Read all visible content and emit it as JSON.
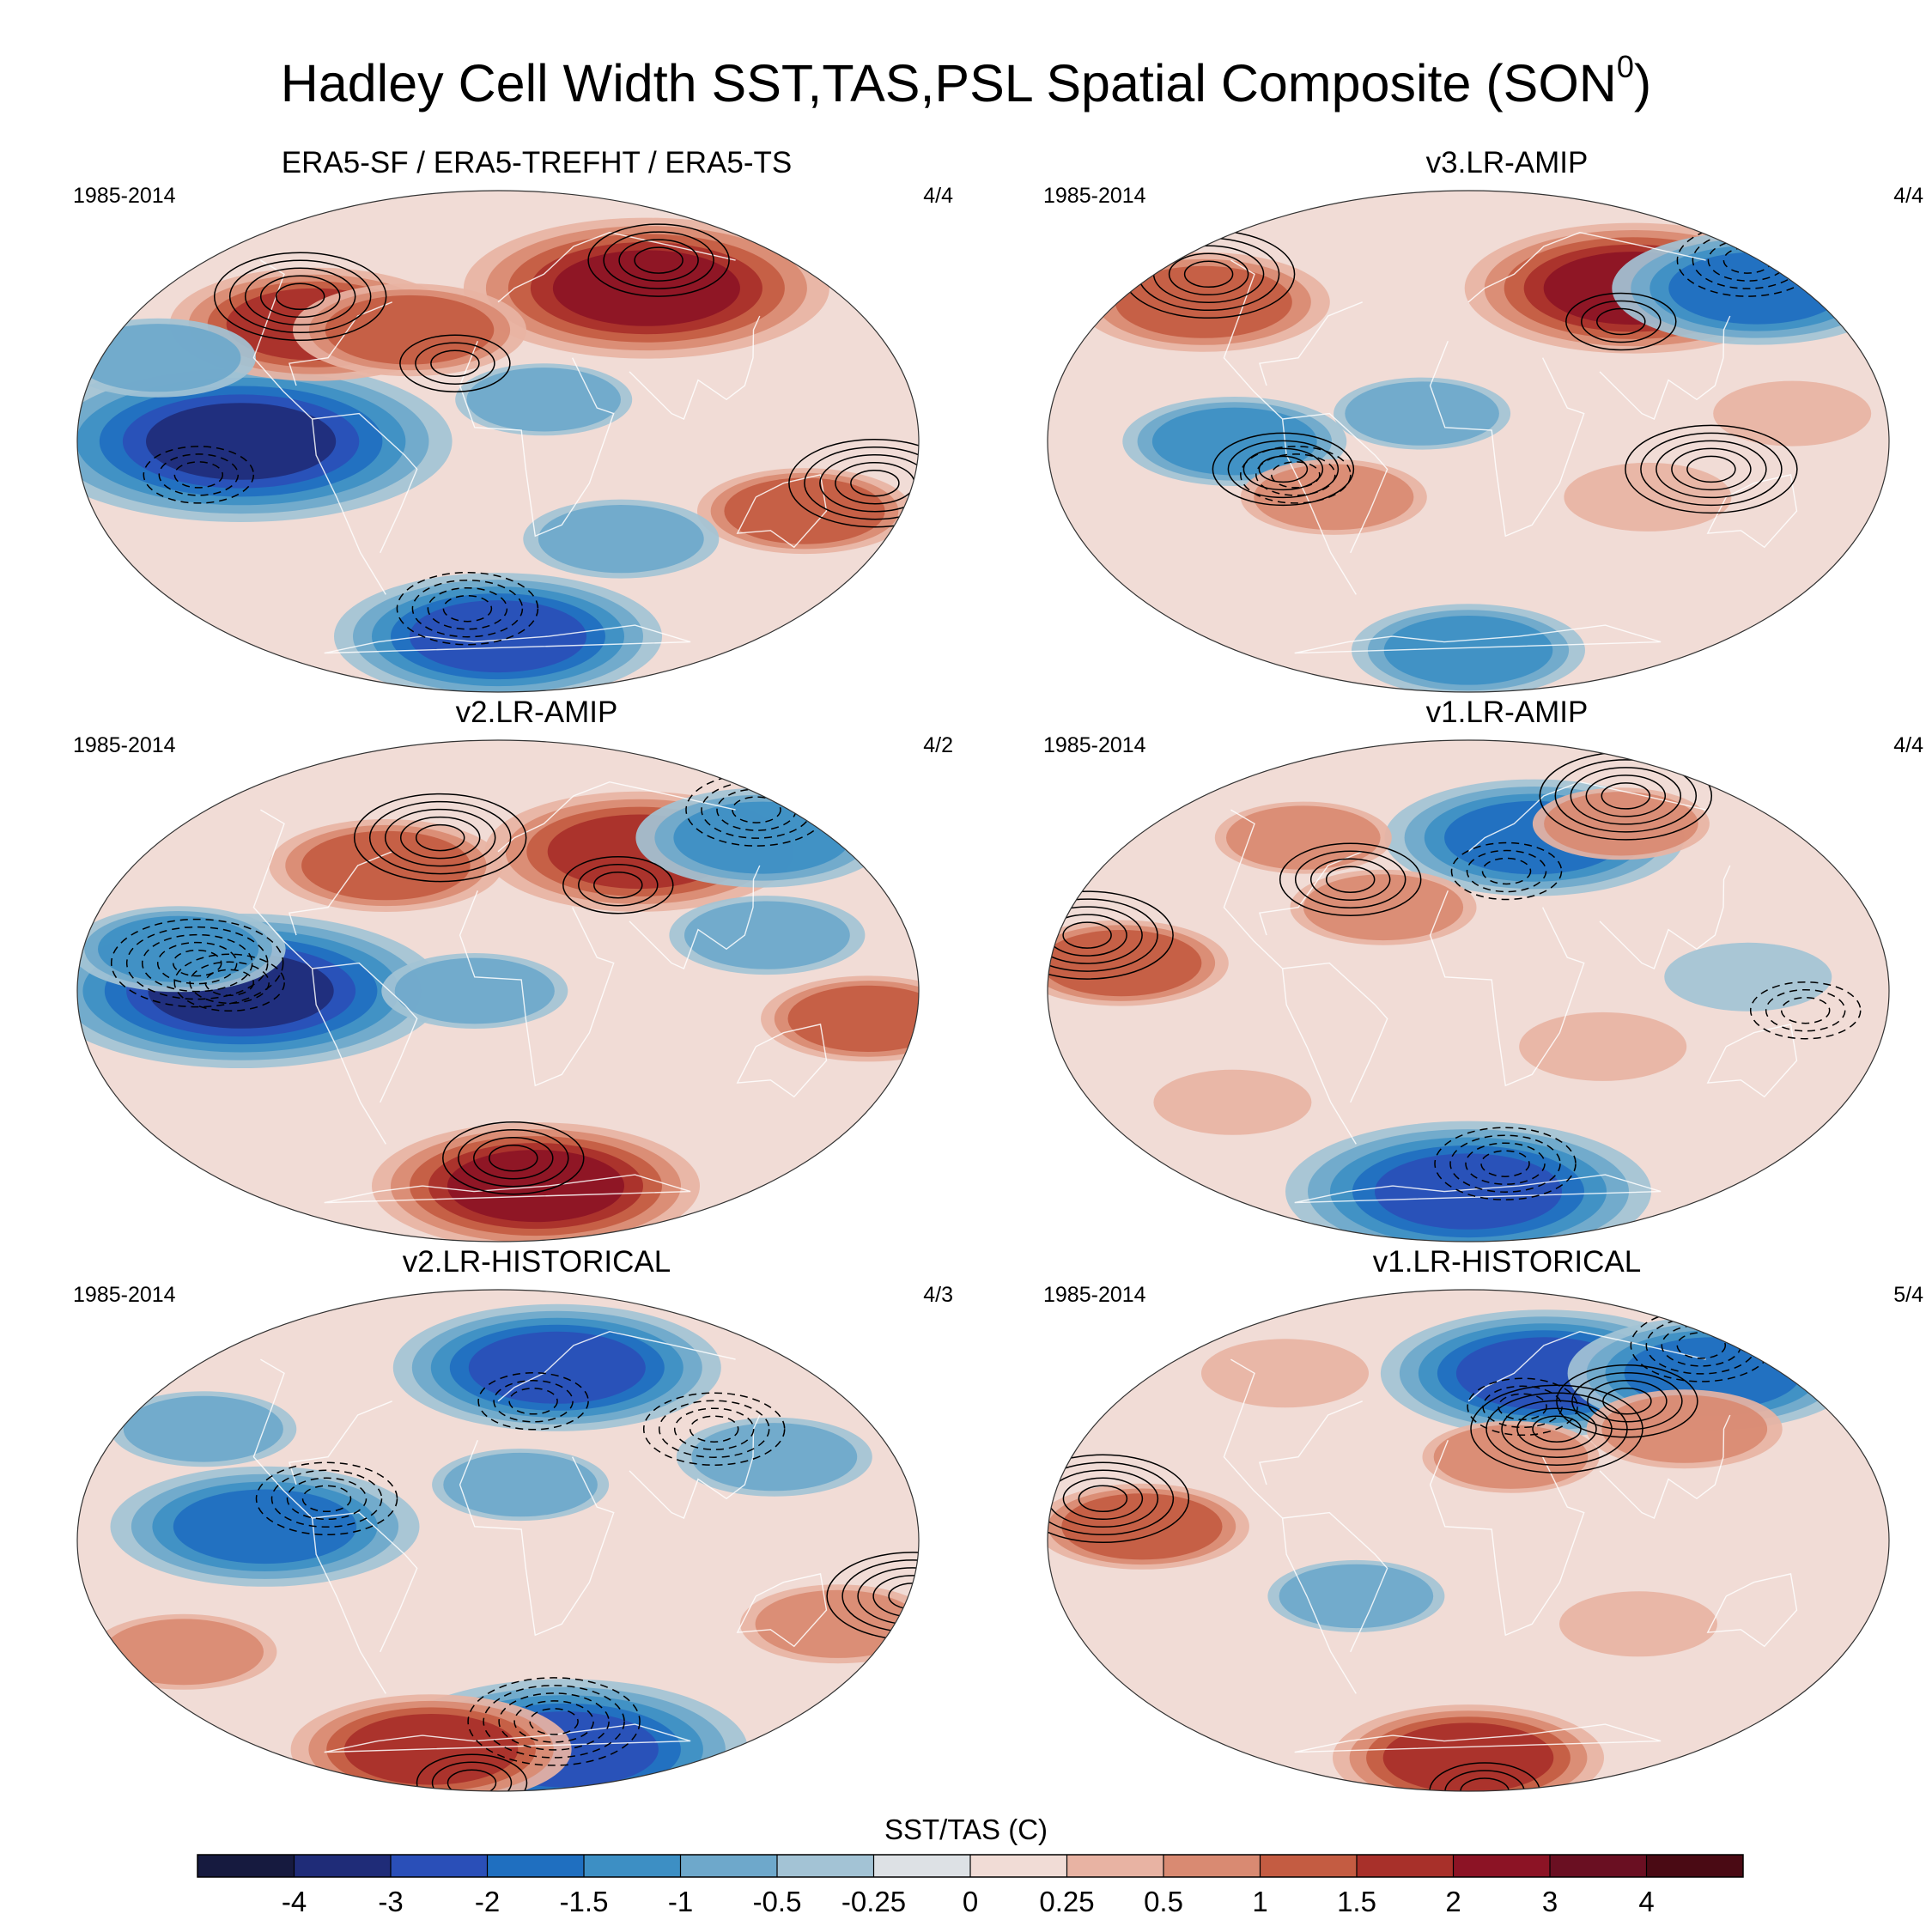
{
  "figure": {
    "title_main": "Hadley Cell Width SST,TAS,PSL Spatial Composite (SON",
    "title_sup": "0",
    "title_close": ")"
  },
  "panels": [
    {
      "title": "ERA5-SF / ERA5-TREFHT / ERA5-TS",
      "period": "1985-2014",
      "count": "4/4"
    },
    {
      "title": "v3.LR-AMIP",
      "period": "1985-2014",
      "count": "4/4"
    },
    {
      "title": "v2.LR-AMIP",
      "period": "1985-2014",
      "count": "4/2"
    },
    {
      "title": "v1.LR-AMIP",
      "period": "1985-2014",
      "count": "4/4"
    },
    {
      "title": "v2.LR-HISTORICAL",
      "period": "1985-2014",
      "count": "4/3"
    },
    {
      "title": "v1.LR-HISTORICAL",
      "period": "1985-2014",
      "count": "5/4"
    }
  ],
  "colorbar": {
    "label": "SST/TAS (C)",
    "ticks": [
      "-4",
      "-3",
      "-2",
      "-1.5",
      "-1",
      "-0.5",
      "-0.25",
      "0",
      "0.25",
      "0.5",
      "1",
      "1.5",
      "2",
      "3",
      "4"
    ],
    "colors": [
      "#161a3f",
      "#1f2c78",
      "#2a4fb8",
      "#1f6fc0",
      "#3d8fc4",
      "#6ea8cb",
      "#a3c3d5",
      "#dde1e5",
      "#f1dcd6",
      "#e8b3a3",
      "#d98a72",
      "#c45c42",
      "#a8302a",
      "#8c1325",
      "#6a0f22",
      "#4a0a14"
    ]
  },
  "anomalies": [
    [
      {
        "lon": -110,
        "lat": 0,
        "v": -3.2
      },
      {
        "lon": 90,
        "lat": 55,
        "v": 2.6
      },
      {
        "lon": -95,
        "lat": 42,
        "v": 1.8
      },
      {
        "lon": -45,
        "lat": 40,
        "v": 1.2
      },
      {
        "lon": 0,
        "lat": -70,
        "v": -2.2
      },
      {
        "lon": 140,
        "lat": -25,
        "v": 1.0
      },
      {
        "lon": 60,
        "lat": -35,
        "v": -0.8
      },
      {
        "lon": 20,
        "lat": 15,
        "v": -0.6
      },
      {
        "lon": -160,
        "lat": 30,
        "v": -0.8
      }
    ],
    [
      {
        "lon": 100,
        "lat": 55,
        "v": 2.3
      },
      {
        "lon": 175,
        "lat": 55,
        "v": -1.8
      },
      {
        "lon": -150,
        "lat": 50,
        "v": 1.4
      },
      {
        "lon": -100,
        "lat": 0,
        "v": -1.1
      },
      {
        "lon": -60,
        "lat": -20,
        "v": 0.7
      },
      {
        "lon": 80,
        "lat": -20,
        "v": 0.5
      },
      {
        "lon": 0,
        "lat": -75,
        "v": -1.2
      },
      {
        "lon": -20,
        "lat": 10,
        "v": -0.6
      },
      {
        "lon": 140,
        "lat": 10,
        "v": 0.4
      }
    ],
    [
      {
        "lon": 80,
        "lat": 50,
        "v": 2.0
      },
      {
        "lon": 160,
        "lat": 55,
        "v": -1.4
      },
      {
        "lon": -110,
        "lat": 0,
        "v": -3.0
      },
      {
        "lon": -140,
        "lat": 15,
        "v": -1.0
      },
      {
        "lon": 30,
        "lat": -70,
        "v": 2.2
      },
      {
        "lon": -60,
        "lat": 45,
        "v": 1.2
      },
      {
        "lon": 160,
        "lat": -10,
        "v": 1.0
      },
      {
        "lon": 120,
        "lat": 20,
        "v": -0.8
      },
      {
        "lon": -10,
        "lat": 0,
        "v": -0.7
      }
    ],
    [
      {
        "lon": 40,
        "lat": 55,
        "v": -1.9
      },
      {
        "lon": 0,
        "lat": -72,
        "v": -2.6
      },
      {
        "lon": -150,
        "lat": 10,
        "v": 1.0
      },
      {
        "lon": 120,
        "lat": 5,
        "v": -0.5
      },
      {
        "lon": -40,
        "lat": 30,
        "v": 0.7
      },
      {
        "lon": 100,
        "lat": 60,
        "v": 0.6
      },
      {
        "lon": -100,
        "lat": 55,
        "v": 0.6
      },
      {
        "lon": 60,
        "lat": -20,
        "v": 0.5
      },
      {
        "lon": -120,
        "lat": -40,
        "v": 0.4
      }
    ],
    [
      {
        "lon": 40,
        "lat": 62,
        "v": -2.2
      },
      {
        "lon": -100,
        "lat": 5,
        "v": -2.0
      },
      {
        "lon": 60,
        "lat": -75,
        "v": -2.6
      },
      {
        "lon": -60,
        "lat": -75,
        "v": 1.7
      },
      {
        "lon": 130,
        "lat": 30,
        "v": -0.8
      },
      {
        "lon": 160,
        "lat": -30,
        "v": 0.8
      },
      {
        "lon": -160,
        "lat": -40,
        "v": 0.7
      },
      {
        "lon": -150,
        "lat": 40,
        "v": -0.7
      },
      {
        "lon": 10,
        "lat": 20,
        "v": -0.6
      }
    ],
    [
      {
        "lon": 50,
        "lat": 60,
        "v": -2.2
      },
      {
        "lon": 160,
        "lat": 60,
        "v": -1.8
      },
      {
        "lon": -140,
        "lat": 5,
        "v": 1.0
      },
      {
        "lon": 0,
        "lat": -78,
        "v": 1.6
      },
      {
        "lon": 110,
        "lat": 40,
        "v": 0.8
      },
      {
        "lon": 20,
        "lat": 30,
        "v": 0.6
      },
      {
        "lon": -50,
        "lat": -20,
        "v": -0.6
      },
      {
        "lon": 80,
        "lat": -30,
        "v": 0.4
      },
      {
        "lon": -120,
        "lat": 60,
        "v": 0.5
      }
    ]
  ]
}
